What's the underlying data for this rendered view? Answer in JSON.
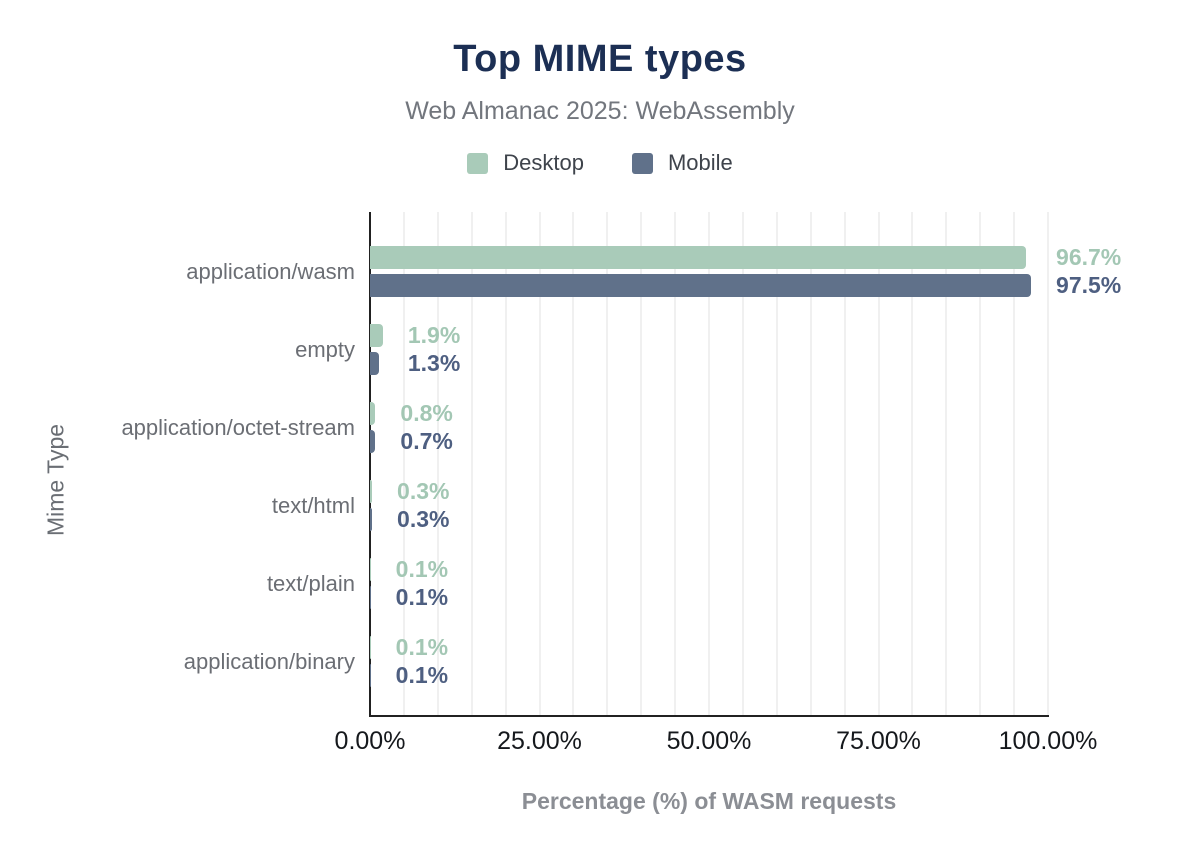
{
  "header": {
    "title": "Top MIME types",
    "subtitle": "Web Almanac 2025: WebAssembly"
  },
  "colors": {
    "title": "#1c2f54",
    "subtitle": "#72767d",
    "desktop": "#a9cbb9",
    "mobile": "#60718a",
    "desktop_value_label": "#a3c7b4",
    "mobile_value_label": "#4e5f81",
    "category_label": "#6b6e74",
    "tick_label": "#15181c",
    "axis_line": "#212121",
    "gridline": "#f0f0f0"
  },
  "chart_data": {
    "type": "bar",
    "orientation": "horizontal",
    "title": "Top MIME types",
    "subtitle": "Web Almanac 2025: WebAssembly",
    "categories": [
      "application/wasm",
      "empty",
      "application/octet-stream",
      "text/html",
      "text/plain",
      "application/binary"
    ],
    "series": [
      {
        "name": "Desktop",
        "color": "#a9cbb9",
        "values": [
          96.7,
          1.9,
          0.8,
          0.3,
          0.1,
          0.1
        ]
      },
      {
        "name": "Mobile",
        "color": "#60718a",
        "values": [
          97.5,
          1.3,
          0.7,
          0.3,
          0.1,
          0.1
        ]
      }
    ],
    "value_label_format": "{value}%",
    "xlabel": "Percentage (%) of WASM requests",
    "ylabel": "Mime Type",
    "xlim": [
      0,
      100
    ],
    "x_ticks": [
      {
        "value": 0,
        "label": "0.00%"
      },
      {
        "value": 25,
        "label": "25.00%"
      },
      {
        "value": 50,
        "label": "50.00%"
      },
      {
        "value": 75,
        "label": "75.00%"
      },
      {
        "value": 100,
        "label": "100.00%"
      }
    ],
    "grid": {
      "show": true,
      "interval_pct": 5
    },
    "legend_position": "top"
  }
}
